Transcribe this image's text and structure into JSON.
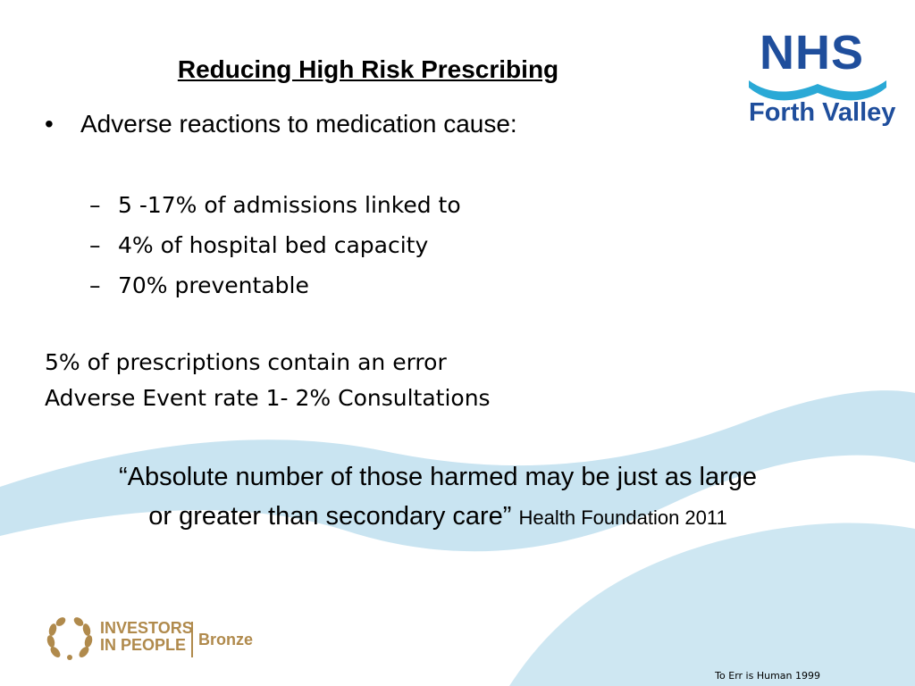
{
  "slide": {
    "title": "Reducing High Risk Prescribing",
    "main_bullet": "Adverse reactions to medication  cause:",
    "bullet_symbol": "•",
    "sub_bullet_symbol": "–",
    "sub_bullets": [
      "5 -17% of admissions linked to",
      "4% of hospital bed capacity",
      "70% preventable"
    ],
    "statements": [
      "5% of prescriptions contain an error",
      "Adverse Event rate 1- 2% Consultations"
    ],
    "quote": {
      "line1": "“Absolute number of those harmed may be just as large",
      "line2": "or greater than secondary care”",
      "source": "Health Foundation 2011"
    },
    "footnote": "To Err is Human 1999"
  },
  "logos": {
    "nhs": {
      "name": "NHS",
      "subtitle": "Forth Valley",
      "color": "#1f4e9c",
      "wave_color": "#2aa9d6"
    },
    "investors": {
      "line1": "INVESTORS",
      "line2": "IN PEOPLE",
      "level": "Bronze",
      "color": "#b08a4c",
      "icon": "laurel-wreath-icon"
    }
  },
  "colors": {
    "wave": "#c9e4f1",
    "text": "#000000"
  }
}
